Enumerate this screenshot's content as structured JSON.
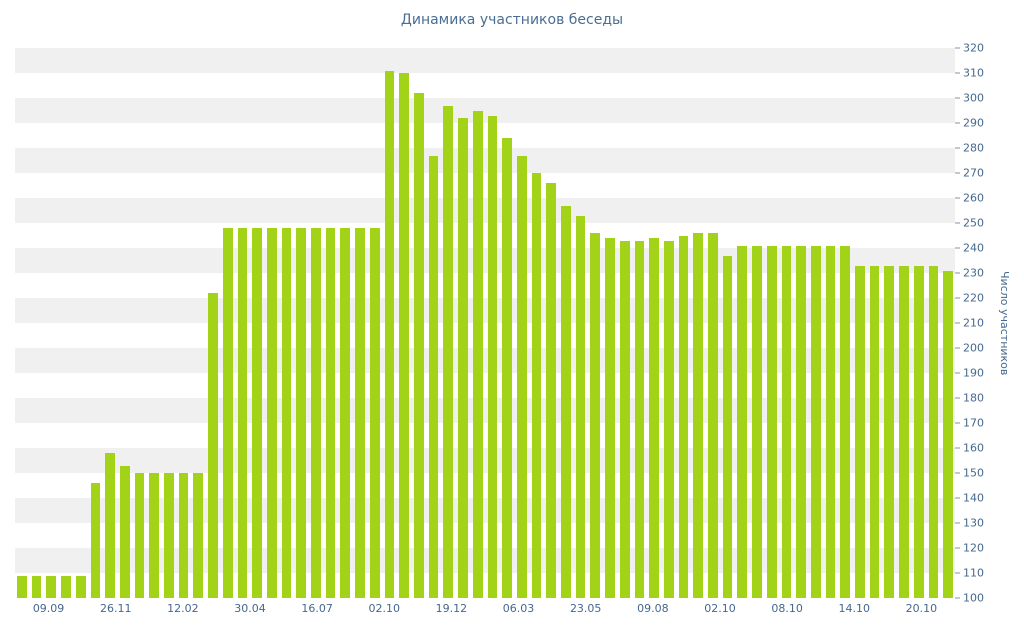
{
  "chart_data": {
    "type": "bar",
    "title": "Динамика участников беседы",
    "xlabel": "",
    "ylabel": "Число участников",
    "ylim": [
      100,
      320
    ],
    "ytick_step": 10,
    "grid": "horizontal-stripes",
    "legend": "none",
    "bar_color": "#a3d319",
    "stripe_color": "#f0f0f0",
    "axis_text_color": "#45688e",
    "title_color": "#4a6e93",
    "x_tick_labels": [
      "09.09",
      "26.11",
      "12.02",
      "30.04",
      "16.07",
      "02.10",
      "19.12",
      "06.03",
      "23.05",
      "09.08",
      "02.10",
      "08.10",
      "14.10",
      "20.10"
    ],
    "values": [
      109,
      109,
      109,
      109,
      109,
      146,
      158,
      153,
      150,
      150,
      150,
      150,
      150,
      222,
      248,
      248,
      248,
      248,
      248,
      248,
      248,
      248,
      248,
      248,
      248,
      311,
      310,
      302,
      277,
      297,
      292,
      295,
      293,
      284,
      277,
      270,
      266,
      257,
      253,
      246,
      244,
      243,
      243,
      244,
      243,
      245,
      246,
      246,
      237,
      241,
      241,
      241,
      241,
      241,
      241,
      241,
      241,
      233,
      233,
      233,
      233,
      233,
      233,
      231
    ]
  }
}
